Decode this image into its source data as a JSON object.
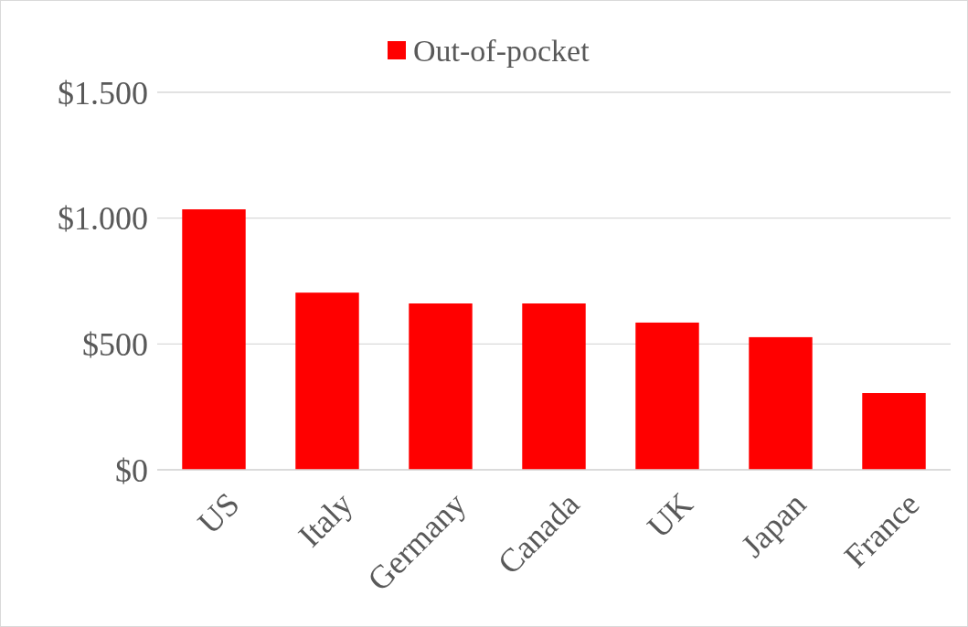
{
  "chart_data": {
    "type": "bar",
    "categories": [
      "US",
      "Italy",
      "Germany",
      "Canada",
      "UK",
      "Japan",
      "France"
    ],
    "series": [
      {
        "name": "Out-of-pocket",
        "color": "#ff0000",
        "values": [
          1035,
          704,
          661,
          661,
          585,
          527,
          305
        ]
      }
    ],
    "ylim": [
      0,
      1500
    ],
    "yticks": [
      {
        "value": 0,
        "label": "$0"
      },
      {
        "value": 500,
        "label": "$500"
      },
      {
        "value": 1000,
        "label": "$1.000"
      },
      {
        "value": 1500,
        "label": "$1.500"
      }
    ],
    "grid": "y",
    "legend": "top"
  }
}
